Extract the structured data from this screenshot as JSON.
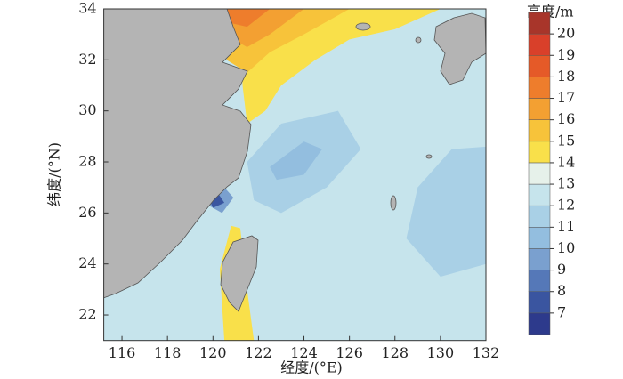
{
  "chart_data": {
    "type": "contour",
    "xlabel": "经度/(°E)",
    "ylabel": "纬度/(°N)",
    "xlim": [
      115.2,
      132
    ],
    "xticks": [
      116,
      118,
      120,
      122,
      124,
      126,
      128,
      130,
      132
    ],
    "ylim": [
      21,
      34
    ],
    "yticks": [
      22,
      24,
      26,
      28,
      30,
      32,
      34
    ],
    "background_level": 12,
    "regions": [
      {
        "level": 11,
        "points": [
          [
            121.5,
            28
          ],
          [
            123,
            29.5
          ],
          [
            125.5,
            30
          ],
          [
            126.5,
            28.5
          ],
          [
            125,
            27
          ],
          [
            123,
            26
          ],
          [
            121.8,
            26.5
          ]
        ]
      },
      {
        "level": 11,
        "points": [
          [
            128.5,
            25
          ],
          [
            129,
            27
          ],
          [
            130.5,
            28.5
          ],
          [
            132,
            28.6
          ],
          [
            132,
            24
          ],
          [
            130,
            23.5
          ]
        ]
      },
      {
        "level": 10,
        "points": [
          [
            122.5,
            27.8
          ],
          [
            124,
            28.8
          ],
          [
            124.8,
            28.5
          ],
          [
            124,
            27.5
          ],
          [
            122.8,
            27.3
          ]
        ]
      },
      {
        "level": 14,
        "points": [
          [
            121.3,
            34
          ],
          [
            130,
            34
          ],
          [
            128,
            33.2
          ],
          [
            126,
            32.8
          ],
          [
            124.5,
            32
          ],
          [
            123,
            31
          ],
          [
            122.3,
            30
          ],
          [
            121.5,
            29.5
          ],
          [
            121.3,
            31
          ]
        ]
      },
      {
        "level": 15,
        "points": [
          [
            120.6,
            34
          ],
          [
            126,
            34
          ],
          [
            124,
            33
          ],
          [
            122.5,
            32.3
          ],
          [
            121.5,
            31.5
          ],
          [
            120.6,
            32
          ]
        ]
      },
      {
        "level": 16,
        "points": [
          [
            120.5,
            34
          ],
          [
            124,
            34
          ],
          [
            122.5,
            33
          ],
          [
            121.5,
            32.5
          ],
          [
            120.5,
            33
          ]
        ]
      },
      {
        "level": 17,
        "points": [
          [
            120.5,
            34
          ],
          [
            122.5,
            34
          ],
          [
            121.5,
            33.3
          ],
          [
            120.5,
            33.5
          ]
        ]
      },
      {
        "level": 14,
        "points": [
          [
            120.8,
            25.5
          ],
          [
            121.2,
            25.4
          ],
          [
            121.5,
            23
          ],
          [
            121.8,
            21
          ],
          [
            120.5,
            21
          ],
          [
            120.3,
            23.8
          ]
        ]
      },
      {
        "level": 9,
        "points": [
          [
            119.6,
            26.4
          ],
          [
            120.3,
            27.2
          ],
          [
            120.9,
            26.6
          ],
          [
            120.4,
            26
          ]
        ]
      },
      {
        "level": 7,
        "points": [
          [
            119.8,
            26.6
          ],
          [
            120.2,
            26.8
          ],
          [
            120.5,
            26.4
          ],
          [
            120,
            26.2
          ]
        ]
      }
    ],
    "colorbar": {
      "title": "高度/m",
      "lim": [
        6,
        21
      ],
      "ticks": [
        7,
        8,
        9,
        10,
        11,
        12,
        13,
        14,
        15,
        16,
        17,
        18,
        19,
        20
      ],
      "levels": [
        6,
        7,
        8,
        9,
        10,
        11,
        12,
        13,
        14,
        15,
        16,
        17,
        18,
        19,
        20
      ],
      "colors": [
        "#2d3a8c",
        "#3a55a0",
        "#5578b8",
        "#7aa0cf",
        "#93bedf",
        "#a9d0e6",
        "#c6e4ec",
        "#e6f1ea",
        "#f9e04a",
        "#f7c33a",
        "#f3a032",
        "#ee7d2c",
        "#e55a28",
        "#d9402a",
        "#a8352a"
      ]
    }
  }
}
